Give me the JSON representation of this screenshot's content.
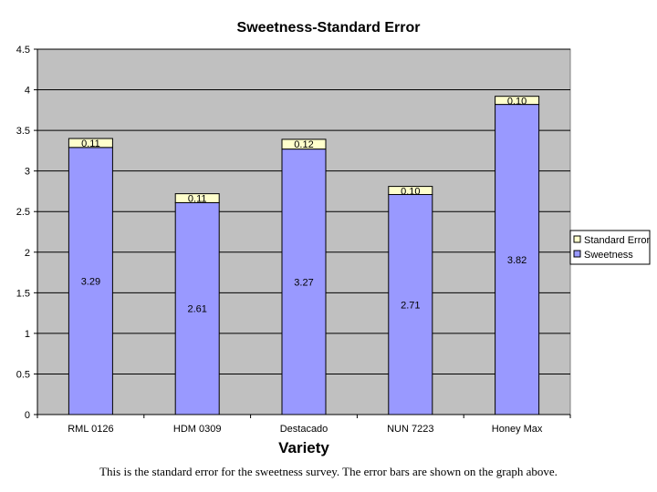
{
  "chart_data": {
    "type": "bar",
    "stacked": true,
    "title": "Sweetness-Standard Error",
    "xlabel": "Variety",
    "ylabel": "",
    "ylim": [
      0,
      4.5
    ],
    "yticks": [
      "0",
      "0.5",
      "1",
      "1.5",
      "2",
      "2.5",
      "3",
      "3.5",
      "4",
      "4.5"
    ],
    "categories": [
      "RML 0126",
      "HDM 0309",
      "Destacado",
      "NUN 7223",
      "Honey Max"
    ],
    "series": [
      {
        "name": "Sweetness",
        "values": [
          3.29,
          2.61,
          3.27,
          2.71,
          3.82
        ],
        "labels": [
          "3.29",
          "2.61",
          "3.27",
          "2.71",
          "3.82"
        ],
        "color": "#9999ff"
      },
      {
        "name": "Standard Error",
        "values": [
          0.11,
          0.11,
          0.12,
          0.1,
          0.1
        ],
        "labels": [
          "0.11",
          "0.11",
          "0.12",
          "0.10",
          "0.10"
        ],
        "color": "#ffffcc"
      }
    ],
    "legend_order": [
      "Standard Error",
      "Sweetness"
    ],
    "legend_position": "right",
    "grid": true,
    "plot_background": "#c0c0c0"
  },
  "caption": "This is the standard error for the sweetness survey. The error bars are shown on the graph above."
}
